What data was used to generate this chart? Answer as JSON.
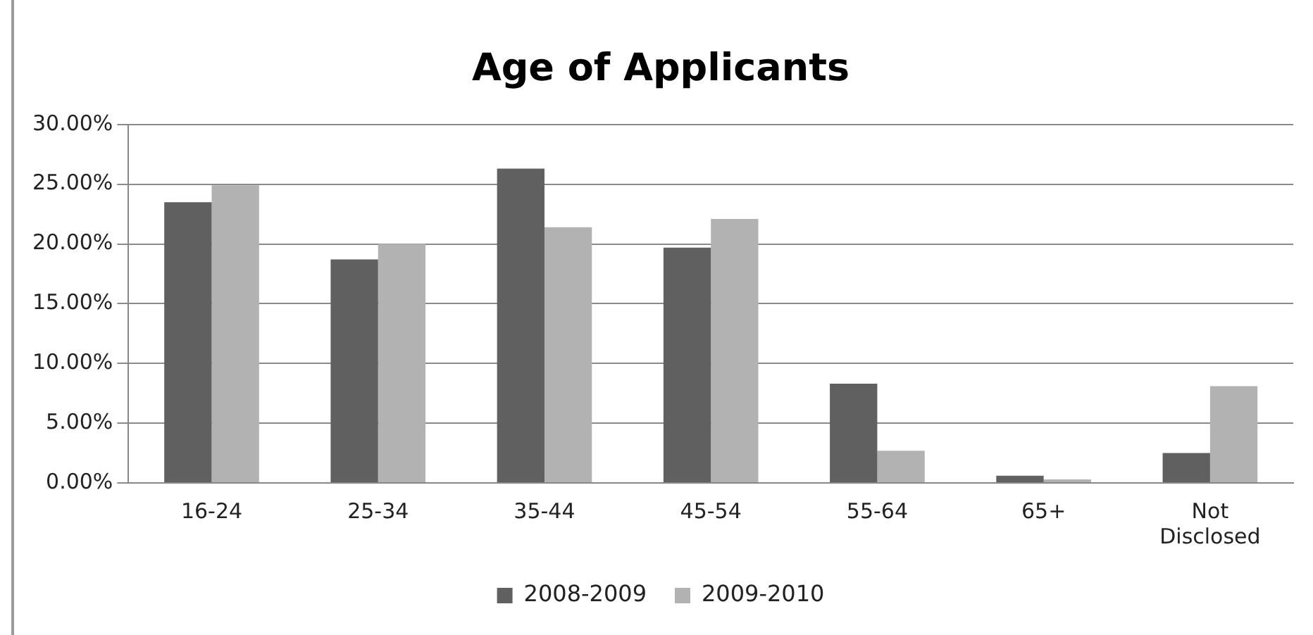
{
  "chart_data": {
    "type": "bar",
    "title": "Age of Applicants",
    "categories": [
      "16-24",
      "25-34",
      "35-44",
      "45-54",
      "55-64",
      "65+",
      "Not Disclosed"
    ],
    "series": [
      {
        "name": "2008-2009",
        "color": "#606060",
        "values": [
          23.5,
          18.7,
          26.3,
          19.7,
          8.3,
          0.6,
          2.5
        ]
      },
      {
        "name": "2009-2010",
        "color": "#b2b2b2",
        "values": [
          24.9,
          20.0,
          21.4,
          22.1,
          2.7,
          0.3,
          8.1
        ]
      }
    ],
    "ylim": [
      0,
      30
    ],
    "yticks": [
      {
        "value": 0,
        "label": "0.00%"
      },
      {
        "value": 5,
        "label": "5.00%"
      },
      {
        "value": 10,
        "label": "10.00%"
      },
      {
        "value": 15,
        "label": "15.00%"
      },
      {
        "value": 20,
        "label": "20.00%"
      },
      {
        "value": 25,
        "label": "25.00%"
      },
      {
        "value": 30,
        "label": "30.00%"
      }
    ],
    "grid": "y",
    "legend": "bottom"
  }
}
